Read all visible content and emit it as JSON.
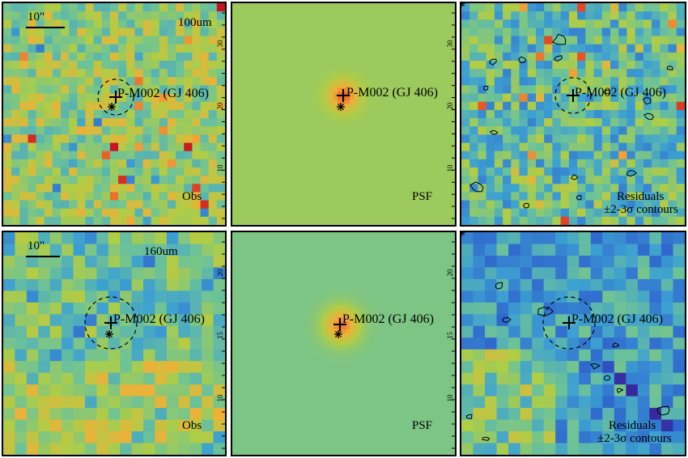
{
  "target_label": "P-M002 (GJ 406)",
  "scale_label": "10\"",
  "rows": [
    {
      "band": "100um",
      "panels": [
        {
          "label": "Obs",
          "kind": "obs"
        },
        {
          "label": "PSF",
          "kind": "psf"
        },
        {
          "label": "Residuals",
          "label2": "±2-3σ contours",
          "kind": "res"
        }
      ],
      "axis_ticks": [
        "10",
        "20",
        "30"
      ]
    },
    {
      "band": "160um",
      "panels": [
        {
          "label": "Obs",
          "kind": "obs"
        },
        {
          "label": "PSF",
          "kind": "psf"
        },
        {
          "label": "Residuals",
          "label2": "±2-3σ contours",
          "kind": "res"
        }
      ],
      "axis_ticks": [
        "10",
        "15",
        "20"
      ]
    }
  ],
  "colors": {
    "psf_background": "#8bc068",
    "psf_background_2": "#6fbc8a",
    "contour": "#000000"
  }
}
